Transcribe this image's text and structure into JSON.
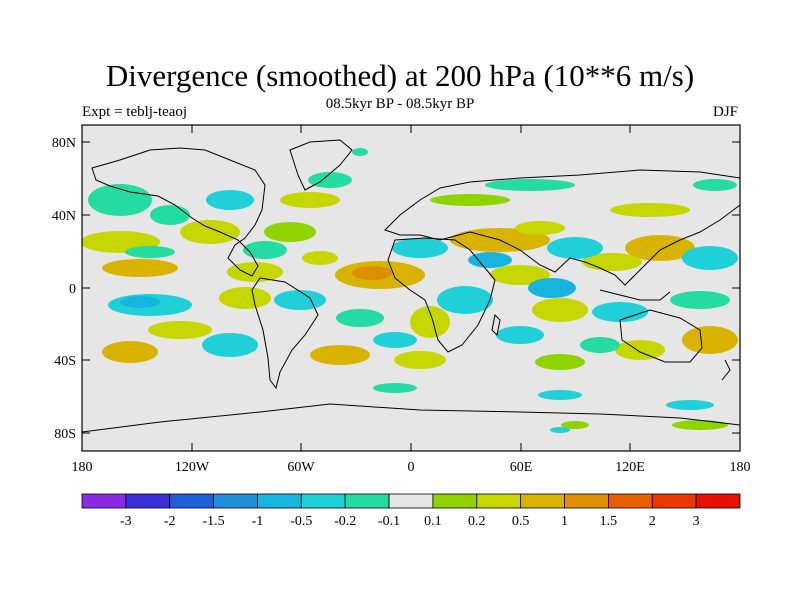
{
  "title": "Divergence (smoothed) at 200 hPa (10**6 m/s)",
  "subtitle": "08.5kyr BP - 08.5kyr BP",
  "left_label": "Expt = teblj-teaoj",
  "right_label": "DJF",
  "y_ticks": [
    "80N",
    "40N",
    "0",
    "40S",
    "80S"
  ],
  "x_ticks": [
    "180",
    "120W",
    "60W",
    "0",
    "60E",
    "120E",
    "180"
  ],
  "colorbar": {
    "colors": [
      "#8a2be2",
      "#3a2fd6",
      "#1f5fd9",
      "#1e8fd8",
      "#17b4e0",
      "#1fd0d8",
      "#24dca0",
      "#e6e6e6",
      "#8fd400",
      "#c6d600",
      "#d8b400",
      "#dd8f00",
      "#e86000",
      "#ea3a00",
      "#e61200"
    ],
    "labels": [
      "-3",
      "-2",
      "-1.5",
      "-1",
      "-0.5",
      "-0.2",
      "-0.1",
      "0.1",
      "0.2",
      "0.5",
      "1",
      "1.5",
      "2",
      "3"
    ]
  },
  "map_colors": {
    "background": "#e6e6e6",
    "pos_light": "#8fd400",
    "pos_mid": "#c6d600",
    "pos_strong": "#d8b400",
    "pos_max": "#dd8f00",
    "neg_light": "#24dca0",
    "neg_mid": "#1fd0d8",
    "neg_strong": "#17b4e0",
    "neg_max": "#1e8fd8"
  }
}
